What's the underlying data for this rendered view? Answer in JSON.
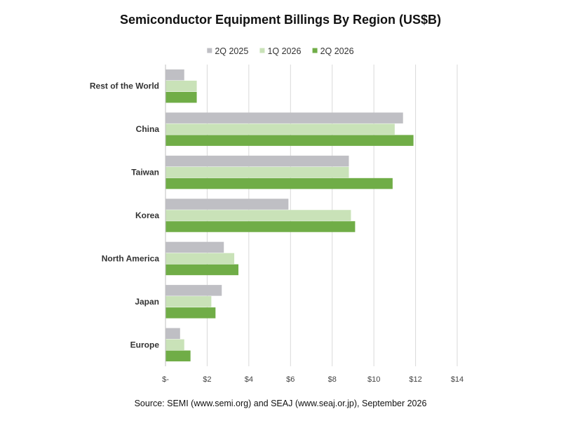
{
  "chart_data": {
    "type": "bar",
    "orientation": "horizontal",
    "title": "Semiconductor Equipment Billings By Region (US$B)",
    "source": "Source: SEMI (www.semi.org) and SEAJ (www.seaj.or.jp), September 2026",
    "categories": [
      "Rest of the World",
      "China",
      "Taiwan",
      "Korea",
      "North America",
      "Japan",
      "Europe"
    ],
    "series": [
      {
        "name": "2Q 2025",
        "color": "#bfbfc4",
        "values": [
          0.9,
          11.4,
          8.8,
          5.9,
          2.8,
          2.7,
          0.7
        ]
      },
      {
        "name": "1Q 2026",
        "color": "#c9e2b8",
        "values": [
          1.5,
          11.0,
          8.8,
          8.9,
          3.3,
          2.2,
          0.9
        ]
      },
      {
        "name": "2Q 2026",
        "color": "#70ad47",
        "values": [
          1.5,
          11.9,
          10.9,
          9.1,
          3.5,
          2.4,
          1.2
        ]
      }
    ],
    "xlim": [
      0,
      14
    ],
    "xticks": [
      0,
      2,
      4,
      6,
      8,
      10,
      12,
      14
    ],
    "xtick_labels": [
      "$-",
      "$2",
      "$4",
      "$6",
      "$8",
      "$10",
      "$12",
      "$14"
    ],
    "grid": "vertical",
    "legend_position": "top"
  }
}
